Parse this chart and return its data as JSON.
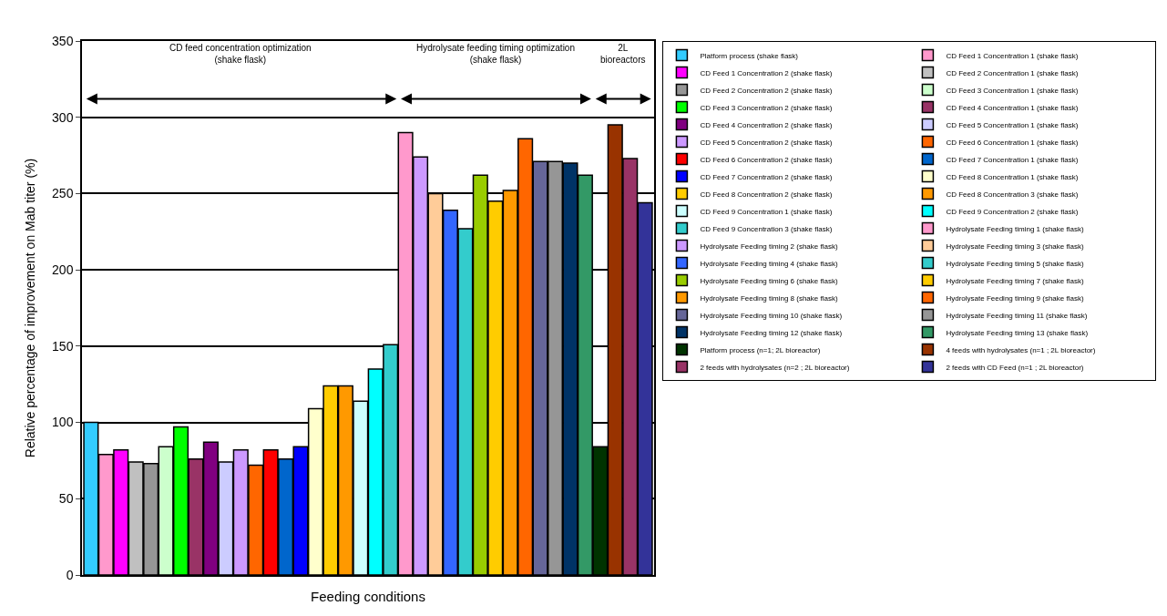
{
  "chart_data": {
    "type": "bar",
    "xlabel": "Feeding conditions",
    "ylabel": "Relative percentage of improvement on Mab titer (%)",
    "categories": [
      null,
      null,
      null,
      null,
      null,
      null,
      null,
      null,
      null,
      null,
      null,
      null,
      null,
      null,
      null,
      null,
      null,
      null,
      null,
      null,
      null,
      null,
      null,
      null,
      null,
      null,
      null,
      null,
      null,
      null,
      null,
      null,
      null,
      null,
      null,
      null,
      null,
      null
    ],
    "ylim": [
      0,
      350
    ],
    "yticks": [
      0,
      50,
      100,
      150,
      200,
      250,
      300,
      350
    ],
    "grid": "y",
    "legend": "right",
    "annotations": [
      "CD feed concentration optimization\n(shake flask)",
      "Hydrolysate feeding timing optimization\n(shake flask)",
      "2L\nbioreactors"
    ],
    "series": [
      {
        "name": "Platform process (shake flask)",
        "color": "#33ccff",
        "values": [
          100,
          null,
          null,
          null,
          null,
          null,
          null,
          null,
          null,
          null,
          null,
          null,
          null,
          null,
          null,
          null,
          null,
          null,
          null,
          null,
          null,
          null,
          null,
          null,
          null,
          null,
          null,
          null,
          null,
          null,
          null,
          null,
          null,
          null,
          null,
          null,
          null,
          null
        ]
      },
      {
        "name": "CD Feed 1 Concentration 1 (shake flask)",
        "color": "#ff99cc",
        "values": [
          null,
          79,
          null,
          null,
          null,
          null,
          null,
          null,
          null,
          null,
          null,
          null,
          null,
          null,
          null,
          null,
          null,
          null,
          null,
          null,
          null,
          null,
          null,
          null,
          null,
          null,
          null,
          null,
          null,
          null,
          null,
          null,
          null,
          null,
          null,
          null,
          null,
          null
        ]
      },
      {
        "name": "CD Feed 1 Concentration 2 (shake flask)",
        "color": "#ff00ff",
        "values": [
          null,
          null,
          82,
          null,
          null,
          null,
          null,
          null,
          null,
          null,
          null,
          null,
          null,
          null,
          null,
          null,
          null,
          null,
          null,
          null,
          null,
          null,
          null,
          null,
          null,
          null,
          null,
          null,
          null,
          null,
          null,
          null,
          null,
          null,
          null,
          null,
          null,
          null
        ]
      },
      {
        "name": "CD Feed 2 Concentration 1 (shake flask)",
        "color": "#c0c0c0",
        "values": [
          null,
          null,
          null,
          74,
          null,
          null,
          null,
          null,
          null,
          null,
          null,
          null,
          null,
          null,
          null,
          null,
          null,
          null,
          null,
          null,
          null,
          null,
          null,
          null,
          null,
          null,
          null,
          null,
          null,
          null,
          null,
          null,
          null,
          null,
          null,
          null,
          null,
          null
        ]
      },
      {
        "name": "CD Feed 2 Concentration 2 (shake flask)",
        "color": "#969696",
        "values": [
          null,
          null,
          null,
          null,
          73,
          null,
          null,
          null,
          null,
          null,
          null,
          null,
          null,
          null,
          null,
          null,
          null,
          null,
          null,
          null,
          null,
          null,
          null,
          null,
          null,
          null,
          null,
          null,
          null,
          null,
          null,
          null,
          null,
          null,
          null,
          null,
          null,
          null
        ]
      },
      {
        "name": "CD Feed 3 Concentration 1 (shake flask)",
        "color": "#ccffcc",
        "values": [
          null,
          null,
          null,
          null,
          null,
          84,
          null,
          null,
          null,
          null,
          null,
          null,
          null,
          null,
          null,
          null,
          null,
          null,
          null,
          null,
          null,
          null,
          null,
          null,
          null,
          null,
          null,
          null,
          null,
          null,
          null,
          null,
          null,
          null,
          null,
          null,
          null,
          null
        ]
      },
      {
        "name": "CD Feed 3 Concentration 2 (shake flask)",
        "color": "#00ff00",
        "values": [
          null,
          null,
          null,
          null,
          null,
          null,
          97,
          null,
          null,
          null,
          null,
          null,
          null,
          null,
          null,
          null,
          null,
          null,
          null,
          null,
          null,
          null,
          null,
          null,
          null,
          null,
          null,
          null,
          null,
          null,
          null,
          null,
          null,
          null,
          null,
          null,
          null,
          null
        ]
      },
      {
        "name": "CD Feed 4 Concentration 1 (shake flask)",
        "color": "#993366",
        "values": [
          null,
          null,
          null,
          null,
          null,
          null,
          null,
          76,
          null,
          null,
          null,
          null,
          null,
          null,
          null,
          null,
          null,
          null,
          null,
          null,
          null,
          null,
          null,
          null,
          null,
          null,
          null,
          null,
          null,
          null,
          null,
          null,
          null,
          null,
          null,
          null,
          null,
          null
        ]
      },
      {
        "name": "CD Feed 4 Concentration 2 (shake flask)",
        "color": "#800080",
        "values": [
          null,
          null,
          null,
          null,
          null,
          null,
          null,
          null,
          87,
          null,
          null,
          null,
          null,
          null,
          null,
          null,
          null,
          null,
          null,
          null,
          null,
          null,
          null,
          null,
          null,
          null,
          null,
          null,
          null,
          null,
          null,
          null,
          null,
          null,
          null,
          null,
          null,
          null
        ]
      },
      {
        "name": "CD Feed 5 Concentration 1 (shake flask)",
        "color": "#ccccff",
        "values": [
          null,
          null,
          null,
          null,
          null,
          null,
          null,
          null,
          null,
          74,
          null,
          null,
          null,
          null,
          null,
          null,
          null,
          null,
          null,
          null,
          null,
          null,
          null,
          null,
          null,
          null,
          null,
          null,
          null,
          null,
          null,
          null,
          null,
          null,
          null,
          null,
          null,
          null
        ]
      },
      {
        "name": "CD Feed 5 Concentration 2 (shake flask)",
        "color": "#cc99ff",
        "values": [
          null,
          null,
          null,
          null,
          null,
          null,
          null,
          null,
          null,
          null,
          82,
          null,
          null,
          null,
          null,
          null,
          null,
          null,
          null,
          null,
          null,
          null,
          null,
          null,
          null,
          null,
          null,
          null,
          null,
          null,
          null,
          null,
          null,
          null,
          null,
          null,
          null,
          null
        ]
      },
      {
        "name": "CD Feed 6 Concentration 1 (shake flask)",
        "color": "#ff6600",
        "values": [
          null,
          null,
          null,
          null,
          null,
          null,
          null,
          null,
          null,
          null,
          null,
          72,
          null,
          null,
          null,
          null,
          null,
          null,
          null,
          null,
          null,
          null,
          null,
          null,
          null,
          null,
          null,
          null,
          null,
          null,
          null,
          null,
          null,
          null,
          null,
          null,
          null,
          null
        ]
      },
      {
        "name": "CD Feed 6 Concentration 2 (shake flask)",
        "color": "#ff0000",
        "values": [
          null,
          null,
          null,
          null,
          null,
          null,
          null,
          null,
          null,
          null,
          null,
          null,
          82,
          null,
          null,
          null,
          null,
          null,
          null,
          null,
          null,
          null,
          null,
          null,
          null,
          null,
          null,
          null,
          null,
          null,
          null,
          null,
          null,
          null,
          null,
          null,
          null,
          null
        ]
      },
      {
        "name": "CD Feed 7 Concentration 1 (shake flask)",
        "color": "#0066cc",
        "values": [
          null,
          null,
          null,
          null,
          null,
          null,
          null,
          null,
          null,
          null,
          null,
          null,
          null,
          76,
          null,
          null,
          null,
          null,
          null,
          null,
          null,
          null,
          null,
          null,
          null,
          null,
          null,
          null,
          null,
          null,
          null,
          null,
          null,
          null,
          null,
          null,
          null,
          null
        ]
      },
      {
        "name": "CD Feed 7 Concentration 2 (shake flask)",
        "color": "#0000ff",
        "values": [
          null,
          null,
          null,
          null,
          null,
          null,
          null,
          null,
          null,
          null,
          null,
          null,
          null,
          null,
          84,
          null,
          null,
          null,
          null,
          null,
          null,
          null,
          null,
          null,
          null,
          null,
          null,
          null,
          null,
          null,
          null,
          null,
          null,
          null,
          null,
          null,
          null,
          null
        ]
      },
      {
        "name": "CD Feed 8 Concentration 1 (shake flask)",
        "color": "#ffffcc",
        "values": [
          null,
          null,
          null,
          null,
          null,
          null,
          null,
          null,
          null,
          null,
          null,
          null,
          null,
          null,
          null,
          109,
          null,
          null,
          null,
          null,
          null,
          null,
          null,
          null,
          null,
          null,
          null,
          null,
          null,
          null,
          null,
          null,
          null,
          null,
          null,
          null,
          null,
          null
        ]
      },
      {
        "name": "CD Feed 8 Concentration 2 (shake flask)",
        "color": "#ffcc00",
        "values": [
          null,
          null,
          null,
          null,
          null,
          null,
          null,
          null,
          null,
          null,
          null,
          null,
          null,
          null,
          null,
          null,
          124,
          null,
          null,
          null,
          null,
          null,
          null,
          null,
          null,
          null,
          null,
          null,
          null,
          null,
          null,
          null,
          null,
          null,
          null,
          null,
          null,
          null
        ]
      },
      {
        "name": "CD Feed 8 Concentration 3 (shake flask)",
        "color": "#ff9900",
        "values": [
          null,
          null,
          null,
          null,
          null,
          null,
          null,
          null,
          null,
          null,
          null,
          null,
          null,
          null,
          null,
          null,
          null,
          124,
          null,
          null,
          null,
          null,
          null,
          null,
          null,
          null,
          null,
          null,
          null,
          null,
          null,
          null,
          null,
          null,
          null,
          null,
          null,
          null
        ]
      },
      {
        "name": "CD Feed 9 Concentration 1 (shake flask)",
        "color": "#ccffff",
        "values": [
          null,
          null,
          null,
          null,
          null,
          null,
          null,
          null,
          null,
          null,
          null,
          null,
          null,
          null,
          null,
          null,
          null,
          null,
          114,
          null,
          null,
          null,
          null,
          null,
          null,
          null,
          null,
          null,
          null,
          null,
          null,
          null,
          null,
          null,
          null,
          null,
          null,
          null
        ]
      },
      {
        "name": "CD Feed 9 Concentration 2 (shake flask)",
        "color": "#00ffff",
        "values": [
          null,
          null,
          null,
          null,
          null,
          null,
          null,
          null,
          null,
          null,
          null,
          null,
          null,
          null,
          null,
          null,
          null,
          null,
          null,
          135,
          null,
          null,
          null,
          null,
          null,
          null,
          null,
          null,
          null,
          null,
          null,
          null,
          null,
          null,
          null,
          null,
          null,
          null
        ]
      },
      {
        "name": "CD Feed 9 Concentration 3 (shake flask)",
        "color": "#33cccc",
        "values": [
          null,
          null,
          null,
          null,
          null,
          null,
          null,
          null,
          null,
          null,
          null,
          null,
          null,
          null,
          null,
          null,
          null,
          null,
          null,
          null,
          151,
          null,
          null,
          null,
          null,
          null,
          null,
          null,
          null,
          null,
          null,
          null,
          null,
          null,
          null,
          null,
          null,
          null
        ]
      },
      {
        "name": "Hydrolysate Feeding timing 1 (shake flask)",
        "color": "#ff99cc",
        "values": [
          null,
          null,
          null,
          null,
          null,
          null,
          null,
          null,
          null,
          null,
          null,
          null,
          null,
          null,
          null,
          null,
          null,
          null,
          null,
          null,
          null,
          290,
          null,
          null,
          null,
          null,
          null,
          null,
          null,
          null,
          null,
          null,
          null,
          null,
          null,
          null,
          null,
          null
        ]
      },
      {
        "name": "Hydrolysate Feeding timing 2 (shake flask)",
        "color": "#cc99ff",
        "values": [
          null,
          null,
          null,
          null,
          null,
          null,
          null,
          null,
          null,
          null,
          null,
          null,
          null,
          null,
          null,
          null,
          null,
          null,
          null,
          null,
          null,
          null,
          274,
          null,
          null,
          null,
          null,
          null,
          null,
          null,
          null,
          null,
          null,
          null,
          null,
          null,
          null,
          null
        ]
      },
      {
        "name": "Hydrolysate Feeding timing 3 (shake flask)",
        "color": "#ffcc99",
        "values": [
          null,
          null,
          null,
          null,
          null,
          null,
          null,
          null,
          null,
          null,
          null,
          null,
          null,
          null,
          null,
          null,
          null,
          null,
          null,
          null,
          null,
          null,
          null,
          250,
          null,
          null,
          null,
          null,
          null,
          null,
          null,
          null,
          null,
          null,
          null,
          null,
          null,
          null
        ]
      },
      {
        "name": "Hydrolysate Feeding timing 4 (shake flask)",
        "color": "#3366ff",
        "values": [
          null,
          null,
          null,
          null,
          null,
          null,
          null,
          null,
          null,
          null,
          null,
          null,
          null,
          null,
          null,
          null,
          null,
          null,
          null,
          null,
          null,
          null,
          null,
          null,
          239,
          null,
          null,
          null,
          null,
          null,
          null,
          null,
          null,
          null,
          null,
          null,
          null,
          null
        ]
      },
      {
        "name": "Hydrolysate Feeding timing 5 (shake flask)",
        "color": "#33cccc",
        "values": [
          null,
          null,
          null,
          null,
          null,
          null,
          null,
          null,
          null,
          null,
          null,
          null,
          null,
          null,
          null,
          null,
          null,
          null,
          null,
          null,
          null,
          null,
          null,
          null,
          null,
          227,
          null,
          null,
          null,
          null,
          null,
          null,
          null,
          null,
          null,
          null,
          null,
          null
        ]
      },
      {
        "name": "Hydrolysate Feeding timing 6 (shake flask)",
        "color": "#99cc00",
        "values": [
          null,
          null,
          null,
          null,
          null,
          null,
          null,
          null,
          null,
          null,
          null,
          null,
          null,
          null,
          null,
          null,
          null,
          null,
          null,
          null,
          null,
          null,
          null,
          null,
          null,
          null,
          262,
          null,
          null,
          null,
          null,
          null,
          null,
          null,
          null,
          null,
          null,
          null
        ]
      },
      {
        "name": "Hydrolysate Feeding timing 7 (shake flask)",
        "color": "#ffcc00",
        "values": [
          null,
          null,
          null,
          null,
          null,
          null,
          null,
          null,
          null,
          null,
          null,
          null,
          null,
          null,
          null,
          null,
          null,
          null,
          null,
          null,
          null,
          null,
          null,
          null,
          null,
          null,
          null,
          245,
          null,
          null,
          null,
          null,
          null,
          null,
          null,
          null,
          null,
          null
        ]
      },
      {
        "name": "Hydrolysate Feeding timing 8 (shake flask)",
        "color": "#ff9900",
        "values": [
          null,
          null,
          null,
          null,
          null,
          null,
          null,
          null,
          null,
          null,
          null,
          null,
          null,
          null,
          null,
          null,
          null,
          null,
          null,
          null,
          null,
          null,
          null,
          null,
          null,
          null,
          null,
          null,
          252,
          null,
          null,
          null,
          null,
          null,
          null,
          null,
          null,
          null
        ]
      },
      {
        "name": "Hydrolysate Feeding timing 9 (shake flask)",
        "color": "#ff6600",
        "values": [
          null,
          null,
          null,
          null,
          null,
          null,
          null,
          null,
          null,
          null,
          null,
          null,
          null,
          null,
          null,
          null,
          null,
          null,
          null,
          null,
          null,
          null,
          null,
          null,
          null,
          null,
          null,
          null,
          null,
          286,
          null,
          null,
          null,
          null,
          null,
          null,
          null,
          null
        ]
      },
      {
        "name": "Hydrolysate Feeding timing 10 (shake flask)",
        "color": "#666699",
        "values": [
          null,
          null,
          null,
          null,
          null,
          null,
          null,
          null,
          null,
          null,
          null,
          null,
          null,
          null,
          null,
          null,
          null,
          null,
          null,
          null,
          null,
          null,
          null,
          null,
          null,
          null,
          null,
          null,
          null,
          null,
          271,
          null,
          null,
          null,
          null,
          null,
          null,
          null
        ]
      },
      {
        "name": "Hydrolysate Feeding timing 11 (shake flask)",
        "color": "#969696",
        "values": [
          null,
          null,
          null,
          null,
          null,
          null,
          null,
          null,
          null,
          null,
          null,
          null,
          null,
          null,
          null,
          null,
          null,
          null,
          null,
          null,
          null,
          null,
          null,
          null,
          null,
          null,
          null,
          null,
          null,
          null,
          null,
          271,
          null,
          null,
          null,
          null,
          null,
          null
        ]
      },
      {
        "name": "Hydrolysate Feeding timing 12 (shake flask)",
        "color": "#003366",
        "values": [
          null,
          null,
          null,
          null,
          null,
          null,
          null,
          null,
          null,
          null,
          null,
          null,
          null,
          null,
          null,
          null,
          null,
          null,
          null,
          null,
          null,
          null,
          null,
          null,
          null,
          null,
          null,
          null,
          null,
          null,
          null,
          null,
          270,
          null,
          null,
          null,
          null,
          null
        ]
      },
      {
        "name": "Hydrolysate Feeding timing 13 (shake flask)",
        "color": "#339966",
        "values": [
          null,
          null,
          null,
          null,
          null,
          null,
          null,
          null,
          null,
          null,
          null,
          null,
          null,
          null,
          null,
          null,
          null,
          null,
          null,
          null,
          null,
          null,
          null,
          null,
          null,
          null,
          null,
          null,
          null,
          null,
          null,
          null,
          null,
          262,
          null,
          null,
          null,
          null
        ]
      },
      {
        "name": "Platform process (n=1; 2L bioreactor)",
        "color": "#003300",
        "values": [
          null,
          null,
          null,
          null,
          null,
          null,
          null,
          null,
          null,
          null,
          null,
          null,
          null,
          null,
          null,
          null,
          null,
          null,
          null,
          null,
          null,
          null,
          null,
          null,
          null,
          null,
          null,
          null,
          null,
          null,
          null,
          null,
          null,
          null,
          84,
          null,
          null,
          null
        ]
      },
      {
        "name": "4 feeds with hydrolysates (n=1 ; 2L bioreactor)",
        "color": "#993300",
        "values": [
          null,
          null,
          null,
          null,
          null,
          null,
          null,
          null,
          null,
          null,
          null,
          null,
          null,
          null,
          null,
          null,
          null,
          null,
          null,
          null,
          null,
          null,
          null,
          null,
          null,
          null,
          null,
          null,
          null,
          null,
          null,
          null,
          null,
          null,
          null,
          295,
          null,
          null
        ]
      },
      {
        "name": "2 feeds with hydrolysates (n=2 ; 2L bioreactor)",
        "color": "#993366",
        "values": [
          null,
          null,
          null,
          null,
          null,
          null,
          null,
          null,
          null,
          null,
          null,
          null,
          null,
          null,
          null,
          null,
          null,
          null,
          null,
          null,
          null,
          null,
          null,
          null,
          null,
          null,
          null,
          null,
          null,
          null,
          null,
          null,
          null,
          null,
          null,
          null,
          273,
          null
        ]
      },
      {
        "name": "2 feeds with CD Feed (n=1 ; 2L bioreactor)",
        "color": "#333399",
        "values": [
          null,
          null,
          null,
          null,
          null,
          null,
          null,
          null,
          null,
          null,
          null,
          null,
          null,
          null,
          null,
          null,
          null,
          null,
          null,
          null,
          null,
          null,
          null,
          null,
          null,
          null,
          null,
          null,
          null,
          null,
          null,
          null,
          null,
          null,
          null,
          null,
          null,
          244
        ]
      }
    ]
  }
}
